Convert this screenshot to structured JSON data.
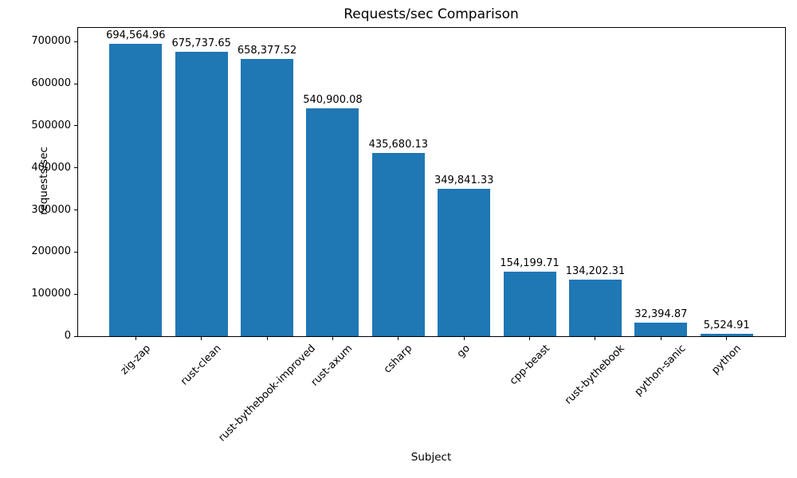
{
  "chart_data": {
    "type": "bar",
    "title": "Requests/sec Comparison",
    "xlabel": "Subject",
    "ylabel": "requests/sec",
    "categories": [
      "zig-zap",
      "rust-clean",
      "rust-bythebook-improved",
      "rust-axum",
      "csharp",
      "go",
      "cpp-beast",
      "rust-bythebook",
      "python-sanic",
      "python"
    ],
    "values": [
      694564.96,
      675737.65,
      658377.52,
      540900.08,
      435680.13,
      349841.33,
      154199.71,
      134202.31,
      32394.87,
      5524.91
    ],
    "value_labels": [
      "694,564.96",
      "675,737.65",
      "658,377.52",
      "540,900.08",
      "435,680.13",
      "349,841.33",
      "154,199.71",
      "134,202.31",
      "32,394.87",
      "5,524.91"
    ],
    "yticks": [
      0,
      100000,
      200000,
      300000,
      400000,
      500000,
      600000,
      700000
    ],
    "ytick_labels": [
      "0",
      "100000",
      "200000",
      "300000",
      "400000",
      "500000",
      "600000",
      "700000"
    ],
    "ylim": [
      0,
      734600
    ],
    "bar_color": "#1f77b4",
    "text_color": "#000000",
    "background_color": "#ffffff",
    "grid": false,
    "legend_position": "none",
    "x_tick_rotation_deg": 45
  }
}
